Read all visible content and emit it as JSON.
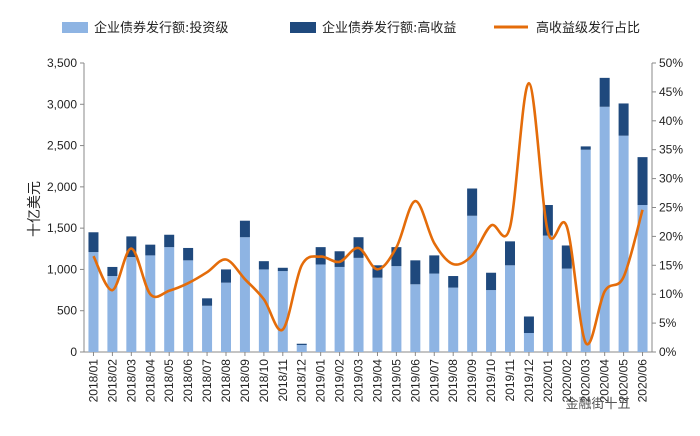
{
  "chart_data": {
    "type": "bar+line",
    "title": "",
    "ylabel": "十亿美元",
    "ylim": [
      0,
      3500
    ],
    "y2lim": [
      0,
      50
    ],
    "yticks": [
      "0",
      "500",
      "1,000",
      "1,500",
      "2,000",
      "2,500",
      "3,000",
      "3,500"
    ],
    "y2ticks": [
      "0%",
      "5%",
      "10%",
      "15%",
      "20%",
      "25%",
      "30%",
      "35%",
      "40%",
      "45%",
      "50%"
    ],
    "categories": [
      "2018/01",
      "2018/02",
      "2018/03",
      "2018/04",
      "2018/05",
      "2018/06",
      "2018/07",
      "2018/08",
      "2018/09",
      "2018/10",
      "2018/11",
      "2018/12",
      "2019/01",
      "2019/02",
      "2019/03",
      "2019/04",
      "2019/05",
      "2019/06",
      "2019/07",
      "2019/08",
      "2019/09",
      "2019/10",
      "2019/11",
      "2019/12",
      "2020/01",
      "2020/02",
      "2020/03",
      "2020/04",
      "2020/05",
      "2020/06"
    ],
    "series": [
      {
        "name": "企业债券发行额:投资级",
        "kind": "bar",
        "color": "#8EB4E3",
        "values": [
          1210,
          920,
          1150,
          1170,
          1270,
          1110,
          560,
          840,
          1390,
          1000,
          980,
          85,
          1060,
          1030,
          1140,
          900,
          1040,
          820,
          950,
          780,
          1650,
          750,
          1050,
          230,
          1410,
          1010,
          2450,
          2970,
          2620,
          1780
        ]
      },
      {
        "name": "企业债券发行额:高收益",
        "kind": "bar",
        "color": "#1F497D",
        "values": [
          240,
          110,
          250,
          130,
          150,
          150,
          90,
          160,
          200,
          100,
          40,
          15,
          210,
          190,
          250,
          150,
          230,
          290,
          220,
          140,
          330,
          210,
          290,
          200,
          370,
          280,
          40,
          350,
          390,
          580
        ]
      },
      {
        "name": "高收益级发行占比",
        "kind": "line",
        "color": "#E46C0A",
        "values": [
          16.6,
          10.7,
          17.9,
          10.0,
          10.6,
          11.9,
          13.8,
          16.0,
          12.6,
          9.1,
          3.9,
          15.0,
          16.5,
          15.6,
          18.0,
          14.3,
          18.1,
          26.1,
          18.8,
          15.2,
          16.7,
          21.9,
          21.6,
          46.5,
          20.8,
          21.7,
          1.6,
          10.5,
          13.0,
          24.6
        ]
      }
    ],
    "legend_position": "top"
  },
  "watermark": "金融街十五"
}
